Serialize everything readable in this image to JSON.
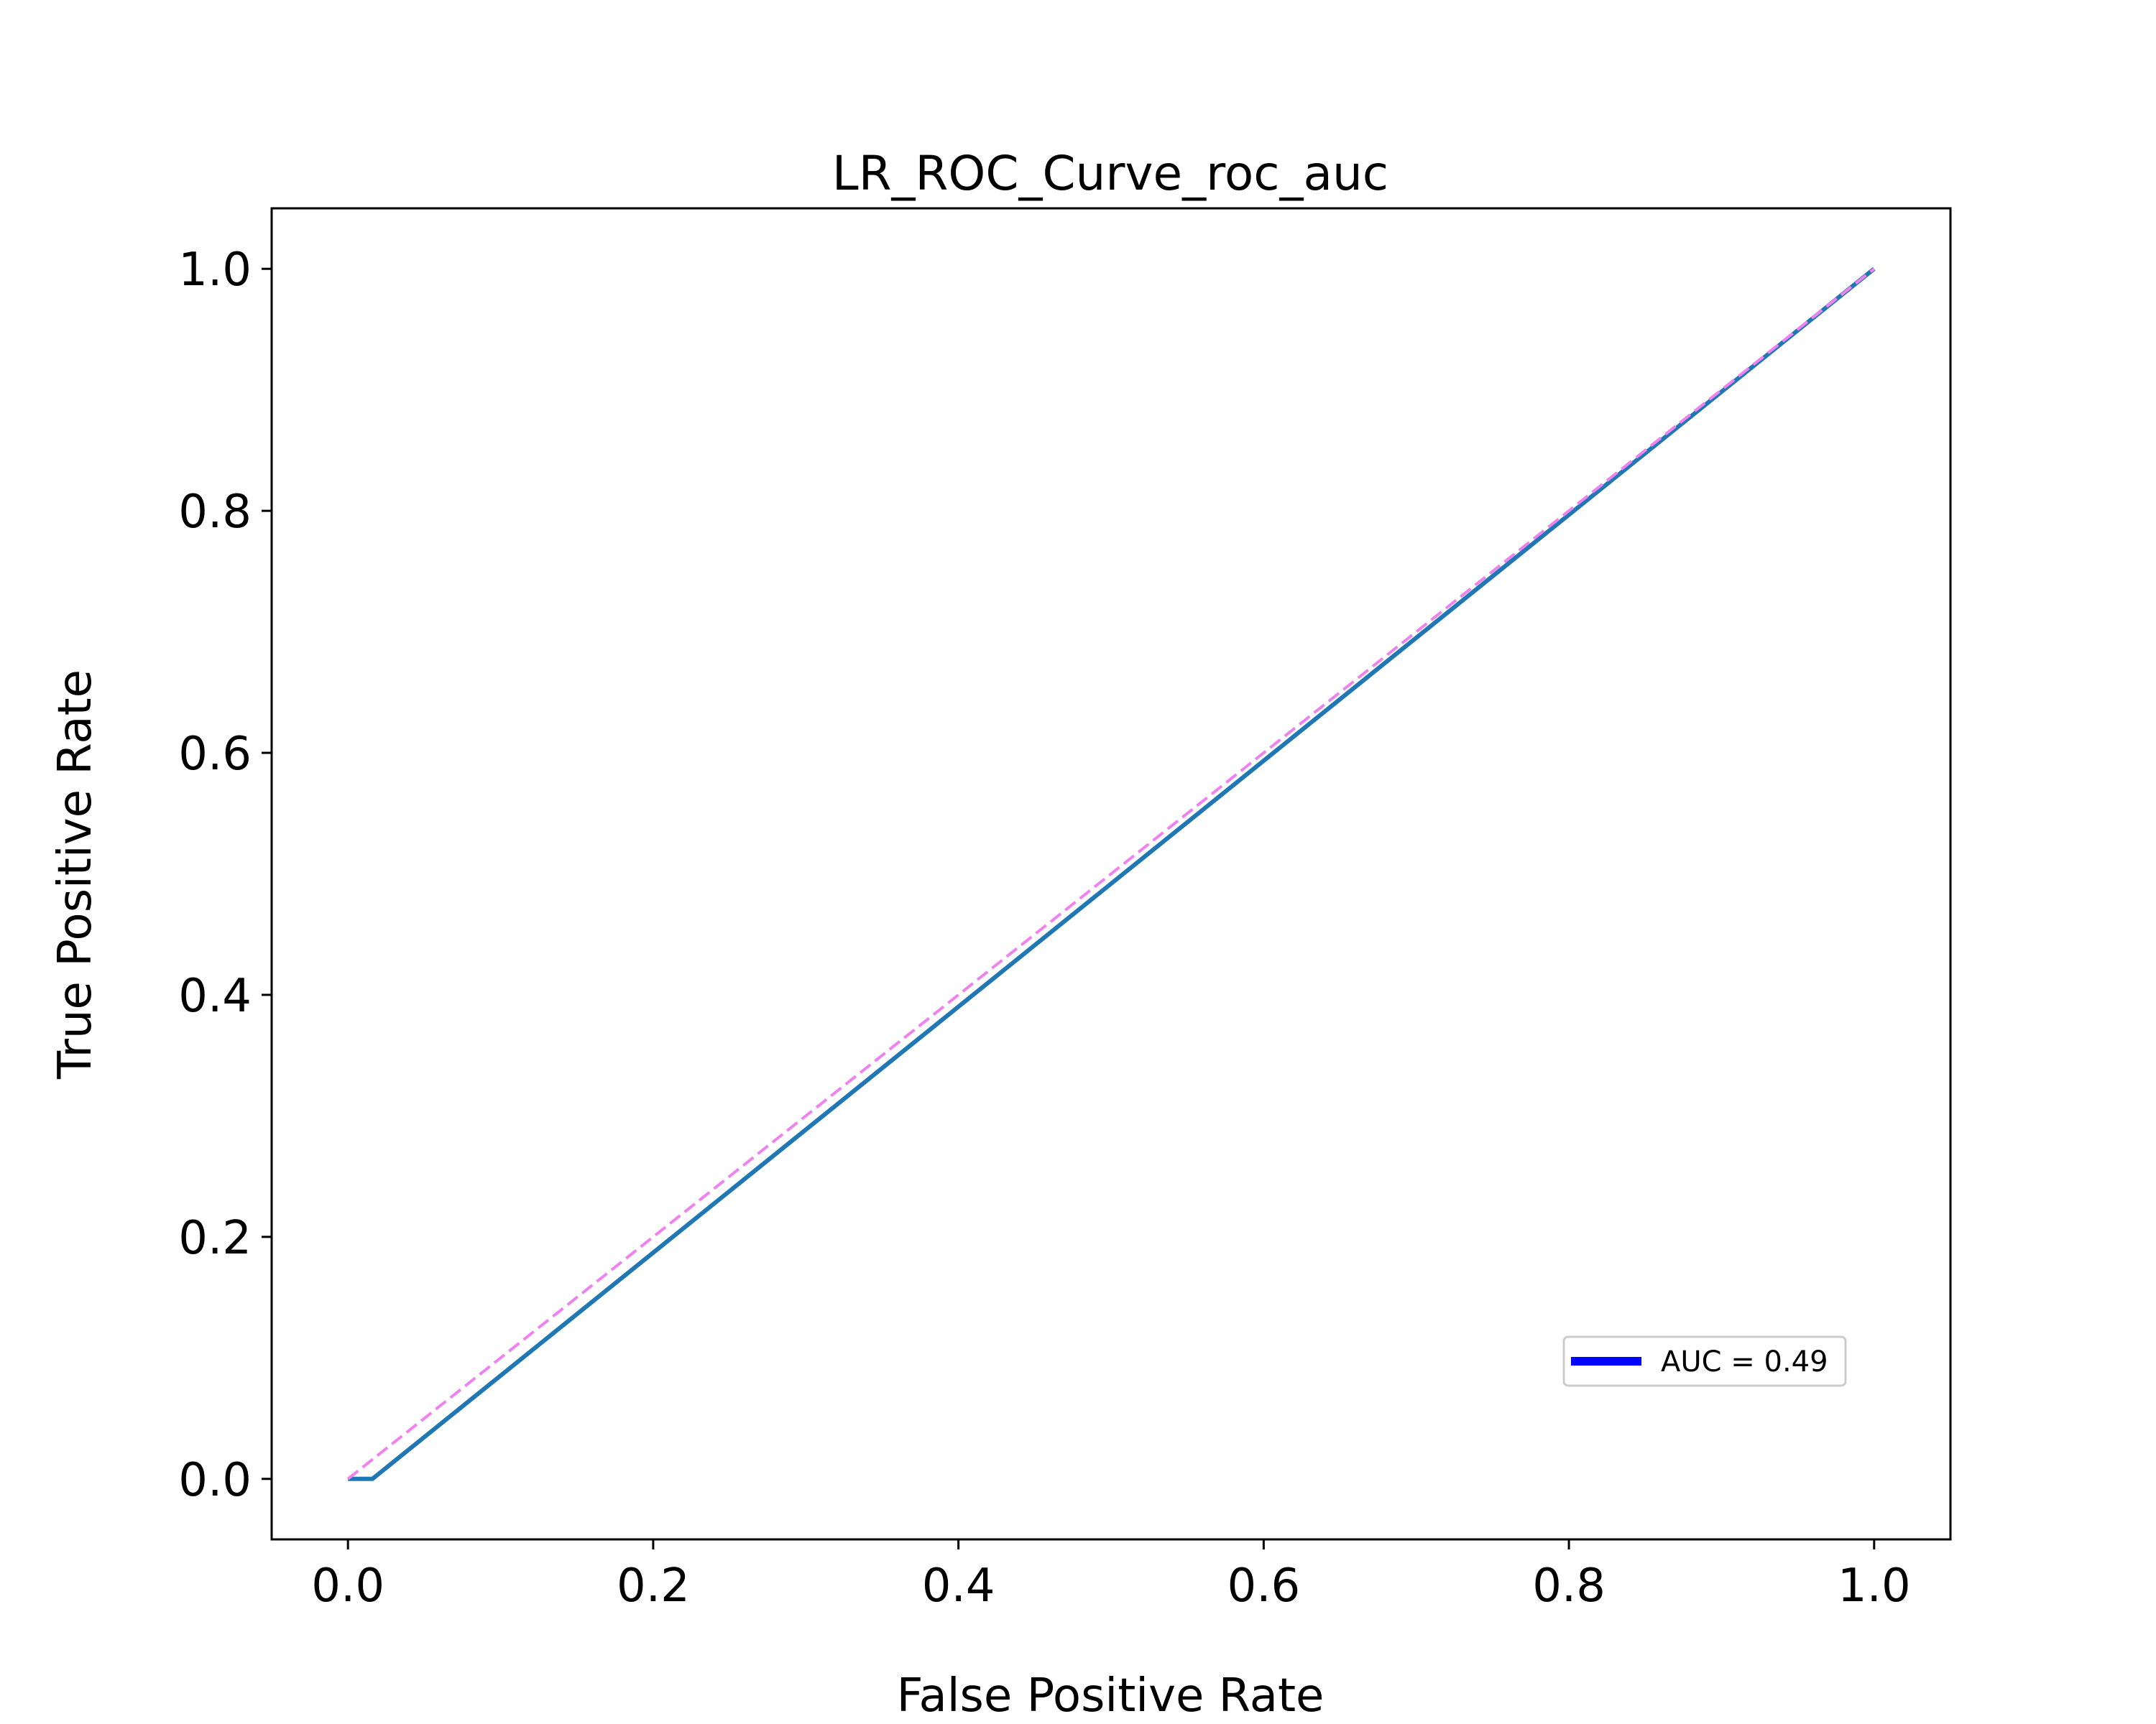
{
  "chart_data": {
    "type": "line",
    "title": "LR_ROC_Curve_roc_auc",
    "xlabel": "False Positive Rate",
    "ylabel": "True Positive Rate",
    "xlim": [
      -0.05,
      1.05
    ],
    "ylim": [
      -0.05,
      1.05
    ],
    "xticks": [
      0.0,
      0.2,
      0.4,
      0.6,
      0.8,
      1.0
    ],
    "xtick_labels": [
      "0.0",
      "0.2",
      "0.4",
      "0.6",
      "0.8",
      "1.0"
    ],
    "yticks": [
      0.0,
      0.2,
      0.4,
      0.6,
      0.8,
      1.0
    ],
    "ytick_labels": [
      "0.0",
      "0.2",
      "0.4",
      "0.6",
      "0.8",
      "1.0"
    ],
    "grid": false,
    "legend": {
      "location": "lower-right",
      "entries": [
        {
          "label": "AUC = 0.49",
          "color": "#0000ff"
        }
      ]
    },
    "series": [
      {
        "name": "AUC = 0.49",
        "style": "solid",
        "color": "#1f77b4",
        "x": [
          0.0,
          0.016,
          1.0
        ],
        "y": [
          0.0,
          0.0,
          1.0
        ]
      },
      {
        "style": "dashed",
        "color": "#ee82ee",
        "x": [
          0.0,
          1.0
        ],
        "y": [
          0.0,
          1.0
        ]
      }
    ]
  }
}
